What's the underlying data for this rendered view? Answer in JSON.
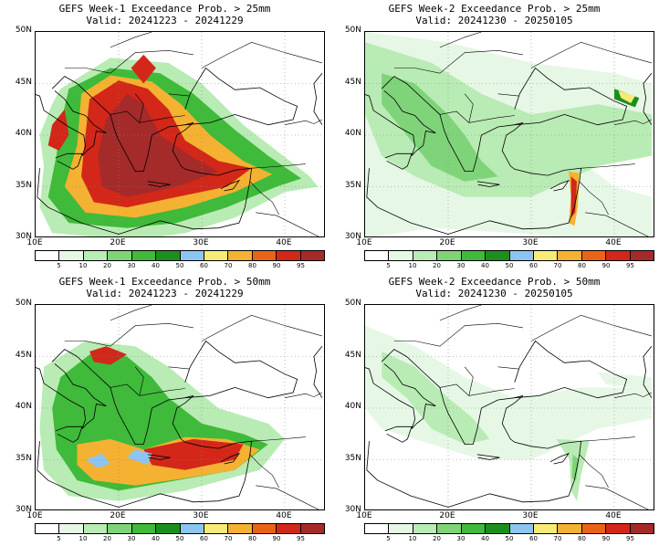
{
  "colors": {
    "levels": [
      "#ffffff",
      "#e6f7e6",
      "#b9ebb4",
      "#7fd47a",
      "#3fba3a",
      "#1b8f1e",
      "#8ec5f0",
      "#f7eb78",
      "#f5b131",
      "#ea6418",
      "#d22719",
      "#a52a2a"
    ],
    "land_line": "#000000",
    "grid_line": "#888888"
  },
  "colorbar": {
    "labels": [
      "5",
      "10",
      "20",
      "30",
      "40",
      "50",
      "60",
      "70",
      "80",
      "90",
      "95"
    ]
  },
  "lat_labels": [
    "50N",
    "45N",
    "40N",
    "35N",
    "30N"
  ],
  "lon_labels": [
    "10E",
    "20E",
    "30E",
    "40E"
  ],
  "panels": [
    {
      "title1": "GEFS Week-1 Exceedance Prob. > 25mm",
      "title2": "Valid: 20241223 - 20241229",
      "intensity": "high"
    },
    {
      "title1": "GEFS Week-2 Exceedance Prob. > 25mm",
      "title2": "Valid: 20241230 - 20250105",
      "intensity": "low"
    },
    {
      "title1": "GEFS Week-1 Exceedance Prob. > 50mm",
      "title2": "Valid: 20241223 - 20241229",
      "intensity": "medium"
    },
    {
      "title1": "GEFS Week-2 Exceedance Prob. > 50mm",
      "title2": "Valid: 20241230 - 20250105",
      "intensity": "verylow"
    }
  ]
}
